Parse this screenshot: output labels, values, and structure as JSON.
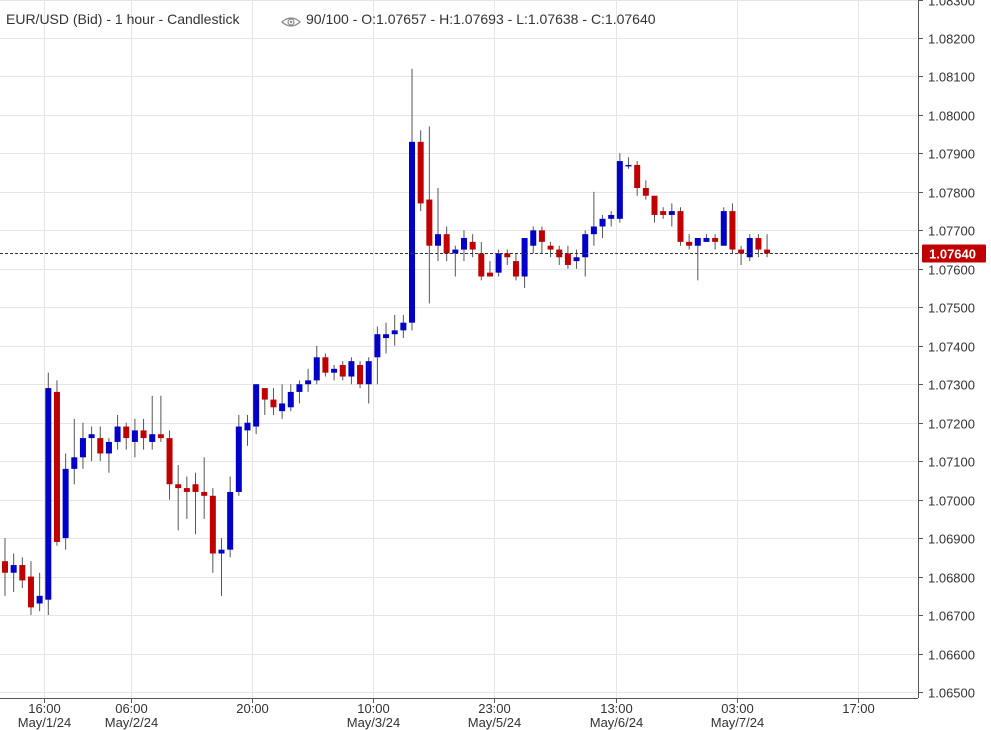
{
  "header": {
    "instrument": "EUR/USD (Bid)",
    "interval": "1 hour",
    "style": "Candlestick",
    "zoom": "90/100",
    "open": "O:1.07657",
    "high": "H:1.07693",
    "low": "L:1.07638",
    "close": "C:1.07640"
  },
  "colors": {
    "up": "#0000c8",
    "down": "#c00000",
    "last_price_bg": "#c00000",
    "grid": "#e6e6e6"
  },
  "chart_data": {
    "type": "candlestick",
    "ylim": [
      1.065,
      1.083
    ],
    "yticks": [
      1.065,
      1.066,
      1.067,
      1.068,
      1.069,
      1.07,
      1.071,
      1.072,
      1.073,
      1.074,
      1.075,
      1.076,
      1.077,
      1.078,
      1.079,
      1.08,
      1.081,
      1.082,
      1.083
    ],
    "ytick_labels": [
      "1.06500",
      "1.06600",
      "1.06700",
      "1.06800",
      "1.06900",
      "1.07000",
      "1.07100",
      "1.07200",
      "1.07300",
      "1.07400",
      "1.07500",
      "1.07600",
      "1.07700",
      "1.07800",
      "1.07900",
      "1.08000",
      "1.08100",
      "1.08200",
      "1.08300"
    ],
    "x_labels": [
      {
        "index": 4.5,
        "time": "16:00",
        "date": "May/1/24"
      },
      {
        "index": 14.5,
        "time": "06:00",
        "date": "May/2/24"
      },
      {
        "index": 28.5,
        "time": "20:00",
        "date": ""
      },
      {
        "index": 42.5,
        "time": "10:00",
        "date": "May/3/24"
      },
      {
        "index": 56.5,
        "time": "23:00",
        "date": "May/5/24"
      },
      {
        "index": 70.5,
        "time": "13:00",
        "date": "May/6/24"
      },
      {
        "index": 84.5,
        "time": "03:00",
        "date": "May/7/24"
      },
      {
        "index": 98.5,
        "time": "17:00",
        "date": ""
      }
    ],
    "last_price": 1.0764,
    "last_price_label": "1.07640",
    "candles": [
      {
        "o": 1.0684,
        "h": 1.069,
        "l": 1.0675,
        "c": 1.0681
      },
      {
        "o": 1.0681,
        "h": 1.0686,
        "l": 1.0676,
        "c": 1.0683
      },
      {
        "o": 1.0683,
        "h": 1.0685,
        "l": 1.0677,
        "c": 1.0679
      },
      {
        "o": 1.068,
        "h": 1.0684,
        "l": 1.067,
        "c": 1.0672
      },
      {
        "o": 1.0673,
        "h": 1.0681,
        "l": 1.0671,
        "c": 1.0675
      },
      {
        "o": 1.0674,
        "h": 1.0733,
        "l": 1.067,
        "c": 1.0729
      },
      {
        "o": 1.0728,
        "h": 1.0731,
        "l": 1.0688,
        "c": 1.0689
      },
      {
        "o": 1.069,
        "h": 1.0712,
        "l": 1.0687,
        "c": 1.0708
      },
      {
        "o": 1.0708,
        "h": 1.0721,
        "l": 1.0704,
        "c": 1.0711
      },
      {
        "o": 1.0711,
        "h": 1.072,
        "l": 1.0708,
        "c": 1.0716
      },
      {
        "o": 1.0716,
        "h": 1.0719,
        "l": 1.071,
        "c": 1.0717
      },
      {
        "o": 1.0716,
        "h": 1.0719,
        "l": 1.071,
        "c": 1.0712
      },
      {
        "o": 1.0712,
        "h": 1.0716,
        "l": 1.0707,
        "c": 1.0715
      },
      {
        "o": 1.0715,
        "h": 1.0722,
        "l": 1.0713,
        "c": 1.0719
      },
      {
        "o": 1.0719,
        "h": 1.072,
        "l": 1.0713,
        "c": 1.0716
      },
      {
        "o": 1.0715,
        "h": 1.0721,
        "l": 1.0711,
        "c": 1.0718
      },
      {
        "o": 1.0718,
        "h": 1.0721,
        "l": 1.0713,
        "c": 1.0716
      },
      {
        "o": 1.0715,
        "h": 1.0727,
        "l": 1.0713,
        "c": 1.0717
      },
      {
        "o": 1.0717,
        "h": 1.0727,
        "l": 1.0715,
        "c": 1.0716
      },
      {
        "o": 1.0716,
        "h": 1.0718,
        "l": 1.07,
        "c": 1.0704
      },
      {
        "o": 1.0704,
        "h": 1.0709,
        "l": 1.0692,
        "c": 1.0703
      },
      {
        "o": 1.0703,
        "h": 1.0706,
        "l": 1.0695,
        "c": 1.0702
      },
      {
        "o": 1.0704,
        "h": 1.0707,
        "l": 1.0691,
        "c": 1.0702
      },
      {
        "o": 1.0702,
        "h": 1.0711,
        "l": 1.0695,
        "c": 1.0701
      },
      {
        "o": 1.0701,
        "h": 1.0703,
        "l": 1.0681,
        "c": 1.0686
      },
      {
        "o": 1.0686,
        "h": 1.069,
        "l": 1.0675,
        "c": 1.0687
      },
      {
        "o": 1.0687,
        "h": 1.0706,
        "l": 1.0685,
        "c": 1.0702
      },
      {
        "o": 1.0702,
        "h": 1.0722,
        "l": 1.0701,
        "c": 1.0719
      },
      {
        "o": 1.0718,
        "h": 1.0722,
        "l": 1.0714,
        "c": 1.072
      },
      {
        "o": 1.0719,
        "h": 1.073,
        "l": 1.0717,
        "c": 1.073
      },
      {
        "o": 1.0729,
        "h": 1.0729,
        "l": 1.0722,
        "c": 1.0726
      },
      {
        "o": 1.0726,
        "h": 1.0729,
        "l": 1.0722,
        "c": 1.0724
      },
      {
        "o": 1.0723,
        "h": 1.073,
        "l": 1.0721,
        "c": 1.0725
      },
      {
        "o": 1.0724,
        "h": 1.073,
        "l": 1.0723,
        "c": 1.0728
      },
      {
        "o": 1.0728,
        "h": 1.0731,
        "l": 1.0725,
        "c": 1.073
      },
      {
        "o": 1.073,
        "h": 1.0734,
        "l": 1.0728,
        "c": 1.0731
      },
      {
        "o": 1.0731,
        "h": 1.074,
        "l": 1.073,
        "c": 1.0737
      },
      {
        "o": 1.0737,
        "h": 1.0738,
        "l": 1.0732,
        "c": 1.0733
      },
      {
        "o": 1.0733,
        "h": 1.0735,
        "l": 1.0731,
        "c": 1.0734
      },
      {
        "o": 1.0735,
        "h": 1.0736,
        "l": 1.0731,
        "c": 1.0732
      },
      {
        "o": 1.0732,
        "h": 1.0737,
        "l": 1.073,
        "c": 1.0736
      },
      {
        "o": 1.0735,
        "h": 1.0736,
        "l": 1.0729,
        "c": 1.073
      },
      {
        "o": 1.073,
        "h": 1.0737,
        "l": 1.0725,
        "c": 1.0736
      },
      {
        "o": 1.0737,
        "h": 1.0745,
        "l": 1.073,
        "c": 1.0743
      },
      {
        "o": 1.0742,
        "h": 1.0746,
        "l": 1.0738,
        "c": 1.0743
      },
      {
        "o": 1.0743,
        "h": 1.0748,
        "l": 1.074,
        "c": 1.0744
      },
      {
        "o": 1.0744,
        "h": 1.0748,
        "l": 1.0742,
        "c": 1.0746
      },
      {
        "o": 1.0746,
        "h": 1.0812,
        "l": 1.0744,
        "c": 1.0793
      },
      {
        "o": 1.0793,
        "h": 1.0796,
        "l": 1.0775,
        "c": 1.0777
      },
      {
        "o": 1.0778,
        "h": 1.0797,
        "l": 1.0751,
        "c": 1.0766
      },
      {
        "o": 1.0766,
        "h": 1.0781,
        "l": 1.0762,
        "c": 1.0769
      },
      {
        "o": 1.0769,
        "h": 1.0771,
        "l": 1.0762,
        "c": 1.0764
      },
      {
        "o": 1.0764,
        "h": 1.0766,
        "l": 1.0758,
        "c": 1.0765
      },
      {
        "o": 1.0765,
        "h": 1.077,
        "l": 1.0762,
        "c": 1.0768
      },
      {
        "o": 1.0767,
        "h": 1.0769,
        "l": 1.0763,
        "c": 1.0765
      },
      {
        "o": 1.0764,
        "h": 1.0767,
        "l": 1.0757,
        "c": 1.0758
      },
      {
        "o": 1.0759,
        "h": 1.0762,
        "l": 1.0758,
        "c": 1.0758
      },
      {
        "o": 1.0759,
        "h": 1.0765,
        "l": 1.0758,
        "c": 1.0764
      },
      {
        "o": 1.0764,
        "h": 1.0765,
        "l": 1.0761,
        "c": 1.0763
      },
      {
        "o": 1.0762,
        "h": 1.0764,
        "l": 1.0757,
        "c": 1.0758
      },
      {
        "o": 1.0758,
        "h": 1.0768,
        "l": 1.0755,
        "c": 1.0768
      },
      {
        "o": 1.0766,
        "h": 1.0771,
        "l": 1.0764,
        "c": 1.077
      },
      {
        "o": 1.077,
        "h": 1.0771,
        "l": 1.0764,
        "c": 1.0767
      },
      {
        "o": 1.0766,
        "h": 1.0767,
        "l": 1.0763,
        "c": 1.0765
      },
      {
        "o": 1.0765,
        "h": 1.0766,
        "l": 1.0761,
        "c": 1.0763
      },
      {
        "o": 1.0764,
        "h": 1.0766,
        "l": 1.076,
        "c": 1.0761
      },
      {
        "o": 1.0762,
        "h": 1.0765,
        "l": 1.076,
        "c": 1.0763
      },
      {
        "o": 1.0763,
        "h": 1.077,
        "l": 1.0758,
        "c": 1.0769
      },
      {
        "o": 1.0769,
        "h": 1.078,
        "l": 1.0766,
        "c": 1.0771
      },
      {
        "o": 1.0771,
        "h": 1.0774,
        "l": 1.0768,
        "c": 1.0773
      },
      {
        "o": 1.0773,
        "h": 1.0775,
        "l": 1.0771,
        "c": 1.0774
      },
      {
        "o": 1.0773,
        "h": 1.079,
        "l": 1.0772,
        "c": 1.0788
      },
      {
        "o": 1.0787,
        "h": 1.0789,
        "l": 1.0786,
        "c": 1.0787
      },
      {
        "o": 1.0787,
        "h": 1.0788,
        "l": 1.0779,
        "c": 1.0781
      },
      {
        "o": 1.0781,
        "h": 1.0783,
        "l": 1.0778,
        "c": 1.0779
      },
      {
        "o": 1.0779,
        "h": 1.0779,
        "l": 1.0772,
        "c": 1.0774
      },
      {
        "o": 1.0775,
        "h": 1.0776,
        "l": 1.0773,
        "c": 1.0774
      },
      {
        "o": 1.0774,
        "h": 1.0777,
        "l": 1.0771,
        "c": 1.0775
      },
      {
        "o": 1.0775,
        "h": 1.0776,
        "l": 1.0766,
        "c": 1.0767
      },
      {
        "o": 1.0767,
        "h": 1.0769,
        "l": 1.0765,
        "c": 1.0766
      },
      {
        "o": 1.0766,
        "h": 1.0768,
        "l": 1.0757,
        "c": 1.0768
      },
      {
        "o": 1.0767,
        "h": 1.0769,
        "l": 1.0767,
        "c": 1.0768
      },
      {
        "o": 1.0768,
        "h": 1.0769,
        "l": 1.0765,
        "c": 1.0767
      },
      {
        "o": 1.0766,
        "h": 1.0776,
        "l": 1.0766,
        "c": 1.0775
      },
      {
        "o": 1.0775,
        "h": 1.0777,
        "l": 1.0764,
        "c": 1.0765
      },
      {
        "o": 1.0765,
        "h": 1.0766,
        "l": 1.0761,
        "c": 1.0764
      },
      {
        "o": 1.0763,
        "h": 1.0769,
        "l": 1.0762,
        "c": 1.0768
      },
      {
        "o": 1.0768,
        "h": 1.0769,
        "l": 1.0763,
        "c": 1.0765
      },
      {
        "o": 1.0765,
        "h": 1.0769,
        "l": 1.0763,
        "c": 1.0764
      }
    ]
  }
}
